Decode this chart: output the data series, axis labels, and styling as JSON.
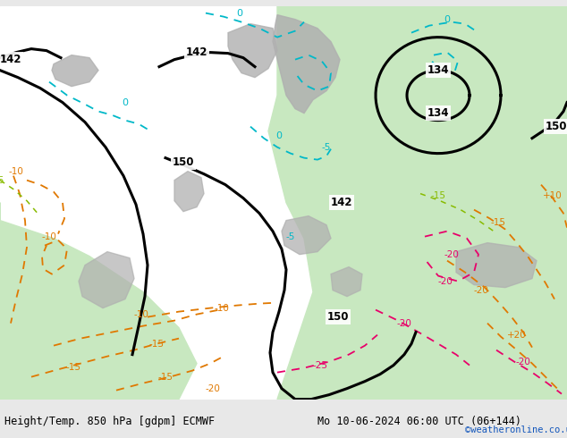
{
  "title_left": "Height/Temp. 850 hPa [gdpm] ECMWF",
  "title_right": "Mo 10-06-2024 06:00 UTC (06+144)",
  "credit": "©weatheronline.co.uk",
  "bg_color": "#e8e8e8",
  "map_white": "#ffffff",
  "map_green": "#c8e8c0",
  "map_gray": "#b0b0b0",
  "black_color": "#000000",
  "orange_color": "#e07800",
  "cyan_color": "#00b8c8",
  "ygreen_color": "#88bb00",
  "pink_color": "#e8006a",
  "label_color": "#000000",
  "credit_color": "#1155bb",
  "font_size_label": 8.5,
  "font_size_credit": 7.5,
  "fig_width": 6.34,
  "fig_height": 4.9
}
